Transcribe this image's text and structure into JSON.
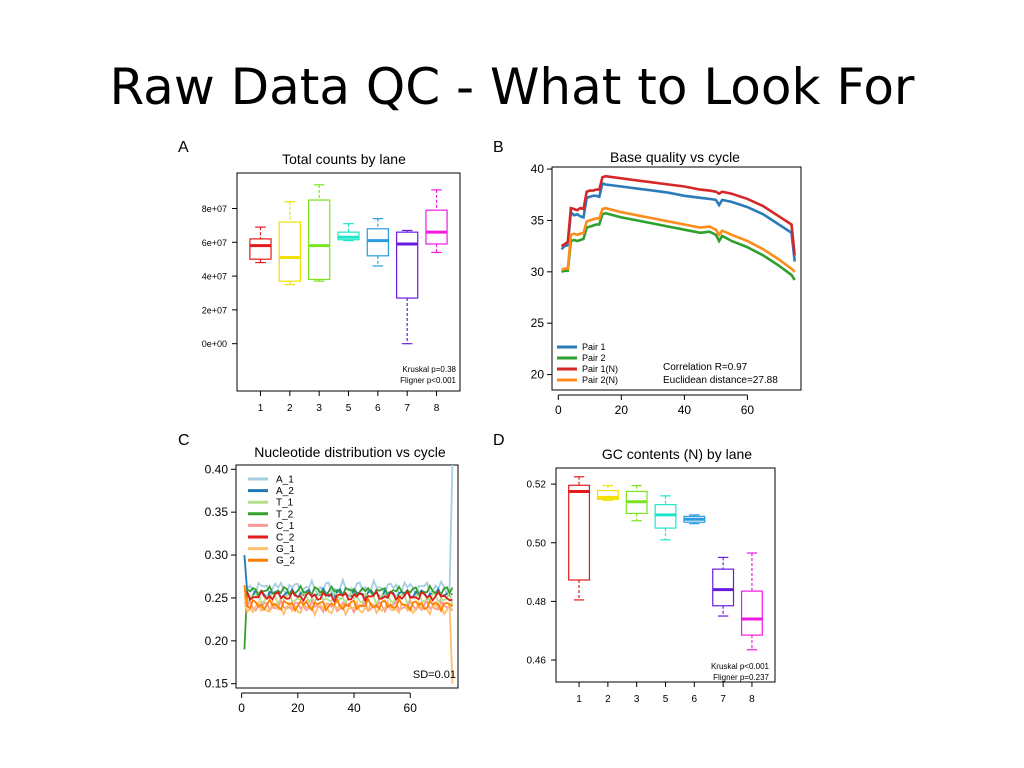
{
  "slide": {
    "title": "Raw Data QC - What to Look For"
  },
  "chart_data": [
    {
      "panel_letter": "A",
      "type": "box",
      "title": "Total counts by lane",
      "categories": [
        "1",
        "2",
        "3",
        "5",
        "6",
        "7",
        "8"
      ],
      "colors": [
        "#e41a1c",
        "#f2e100",
        "#78e51f",
        "#1ee6c8",
        "#2b9be0",
        "#6a1be0",
        "#f01ae0"
      ],
      "boxes": [
        {
          "min": 48000000,
          "q1": 50000000,
          "median": 58000000,
          "q3": 62000000,
          "max": 69000000
        },
        {
          "min": 35000000,
          "q1": 37000000,
          "median": 51000000,
          "q3": 72000000,
          "max": 84000000
        },
        {
          "min": 37000000,
          "q1": 38000000,
          "median": 58000000,
          "q3": 85000000,
          "max": 94000000
        },
        {
          "min": 61000000,
          "q1": 61500000,
          "median": 63000000,
          "q3": 66000000,
          "max": 71000000
        },
        {
          "min": 46000000,
          "q1": 52000000,
          "median": 61000000,
          "q3": 68000000,
          "max": 74000000
        },
        {
          "min": 0,
          "q1": 27000000,
          "median": 59000000,
          "q3": 66000000,
          "max": 67000000
        },
        {
          "min": 54000000,
          "q1": 59000000,
          "median": 66000000,
          "q3": 79000000,
          "max": 91000000
        }
      ],
      "ylim": [
        -28000000,
        101000000
      ],
      "yticks": [
        0,
        20000000,
        40000000,
        60000000,
        80000000
      ],
      "ytick_labels": [
        "0e+00",
        "2e+07",
        "4e+07",
        "6e+07",
        "8e+07"
      ],
      "annotations": [
        "Kruskal p=0.38",
        "Fligner p<0.001"
      ]
    },
    {
      "panel_letter": "B",
      "type": "line",
      "title": "Base quality vs cycle",
      "xlim": [
        -2,
        77
      ],
      "ylim": [
        18.5,
        40.2
      ],
      "xticks": [
        0,
        20,
        40,
        60
      ],
      "yticks": [
        20,
        25,
        30,
        35,
        40
      ],
      "series": [
        {
          "name": "Pair 1",
          "color": "#2b7bba",
          "x": [
            1,
            2,
            3,
            4,
            5,
            6,
            7,
            8,
            9,
            10,
            11,
            12,
            13,
            14,
            15,
            20,
            25,
            30,
            35,
            40,
            45,
            48,
            50,
            51,
            52,
            55,
            60,
            65,
            70,
            74,
            75
          ],
          "y": [
            32.2,
            32.5,
            32.6,
            35.8,
            35.5,
            35.6,
            35.4,
            35.3,
            37.2,
            37.3,
            37.4,
            37.4,
            37.3,
            38.6,
            38.5,
            38.3,
            38.1,
            37.9,
            37.7,
            37.4,
            37.2,
            37.1,
            37.0,
            36.5,
            37.0,
            36.8,
            36.3,
            35.6,
            34.6,
            33.8,
            31.0
          ]
        },
        {
          "name": "Pair 2",
          "color": "#2ea02c",
          "x": [
            1,
            2,
            3,
            4,
            5,
            6,
            7,
            8,
            9,
            10,
            11,
            12,
            13,
            14,
            15,
            20,
            25,
            30,
            35,
            40,
            45,
            48,
            50,
            51,
            52,
            55,
            60,
            65,
            70,
            74,
            75
          ],
          "y": [
            30.0,
            30.1,
            30.1,
            33.0,
            33.1,
            33.0,
            33.1,
            33.2,
            34.3,
            34.4,
            34.5,
            34.6,
            34.6,
            35.6,
            35.7,
            35.3,
            35.0,
            34.7,
            34.4,
            34.1,
            33.8,
            33.9,
            33.6,
            33.0,
            33.5,
            33.0,
            32.4,
            31.6,
            30.6,
            29.7,
            29.2
          ]
        },
        {
          "name": "Pair 1(N)",
          "color": "#d62728",
          "x": [
            1,
            2,
            3,
            4,
            5,
            6,
            7,
            8,
            9,
            10,
            11,
            12,
            13,
            14,
            15,
            20,
            25,
            30,
            35,
            40,
            45,
            48,
            50,
            51,
            52,
            55,
            60,
            65,
            70,
            74,
            75
          ],
          "y": [
            32.5,
            32.7,
            32.9,
            36.2,
            36.1,
            36.0,
            36.2,
            36.1,
            37.8,
            37.9,
            37.9,
            38.0,
            38.0,
            39.2,
            39.3,
            39.1,
            38.9,
            38.7,
            38.5,
            38.3,
            38.0,
            37.9,
            37.8,
            37.6,
            37.8,
            37.6,
            37.1,
            36.4,
            35.4,
            34.6,
            31.6
          ]
        },
        {
          "name": "Pair 2(N)",
          "color": "#ff8c1a",
          "x": [
            1,
            2,
            3,
            4,
            5,
            6,
            7,
            8,
            9,
            10,
            11,
            12,
            13,
            14,
            15,
            20,
            25,
            30,
            35,
            40,
            45,
            48,
            50,
            51,
            52,
            55,
            60,
            65,
            70,
            74,
            75
          ],
          "y": [
            30.2,
            30.3,
            30.3,
            33.6,
            33.7,
            33.6,
            33.7,
            33.8,
            34.9,
            35.0,
            35.1,
            35.2,
            35.2,
            36.1,
            36.2,
            35.8,
            35.5,
            35.2,
            34.9,
            34.6,
            34.3,
            34.4,
            34.1,
            33.6,
            34.0,
            33.6,
            33.0,
            32.2,
            31.2,
            30.3,
            30.0
          ]
        }
      ],
      "annotations": [
        "Correlation R=0.97",
        "Euclidean distance=27.88"
      ]
    },
    {
      "panel_letter": "C",
      "type": "line",
      "title": "Nucleotide distribution vs cycle",
      "xlim": [
        -2,
        77
      ],
      "ylim": [
        0.145,
        0.405
      ],
      "xticks": [
        0,
        20,
        40,
        60
      ],
      "yticks": [
        0.15,
        0.2,
        0.25,
        0.3,
        0.35,
        0.4
      ],
      "ytick_labels": [
        "0.15",
        "0.20",
        "0.25",
        "0.30",
        "0.35",
        "0.40"
      ],
      "series": [
        {
          "name": "A_1",
          "color": "#a6cee3",
          "base": 0.262,
          "amp": 0.009,
          "first": 0.262,
          "last": 0.405
        },
        {
          "name": "A_2",
          "color": "#1f78b4",
          "base": 0.255,
          "amp": 0.006,
          "first": 0.3,
          "last": 0.255
        },
        {
          "name": "T_1",
          "color": "#b2df8a",
          "base": 0.25,
          "amp": 0.008,
          "first": 0.24,
          "last": 0.24
        },
        {
          "name": "T_2",
          "color": "#33a02c",
          "base": 0.258,
          "amp": 0.006,
          "first": 0.19,
          "last": 0.262
        },
        {
          "name": "C_1",
          "color": "#fb9a99",
          "base": 0.24,
          "amp": 0.007,
          "first": 0.245,
          "last": 0.235
        },
        {
          "name": "C_2",
          "color": "#e31a1c",
          "base": 0.252,
          "amp": 0.006,
          "first": 0.258,
          "last": 0.248
        },
        {
          "name": "G_1",
          "color": "#fdbf6f",
          "base": 0.238,
          "amp": 0.008,
          "first": 0.255,
          "last": 0.15
        },
        {
          "name": "G_2",
          "color": "#ff7f00",
          "base": 0.242,
          "amp": 0.007,
          "first": 0.265,
          "last": 0.24
        }
      ],
      "cycles": 75,
      "annotations": [
        "SD=0.01"
      ]
    },
    {
      "panel_letter": "D",
      "type": "box",
      "title": "GC contents (N) by lane",
      "categories": [
        "1",
        "2",
        "3",
        "5",
        "6",
        "7",
        "8"
      ],
      "colors": [
        "#e41a1c",
        "#f2e100",
        "#78e51f",
        "#1ee6c8",
        "#2b9be0",
        "#6a1be0",
        "#f01ae0"
      ],
      "boxes": [
        {
          "min": 0.4805,
          "q1": 0.4873,
          "median": 0.5175,
          "q3": 0.5196,
          "max": 0.5225
        },
        {
          "min": 0.5145,
          "q1": 0.5148,
          "median": 0.5155,
          "q3": 0.5178,
          "max": 0.5195
        },
        {
          "min": 0.5075,
          "q1": 0.51,
          "median": 0.514,
          "q3": 0.5175,
          "max": 0.5195
        },
        {
          "min": 0.501,
          "q1": 0.505,
          "median": 0.5095,
          "q3": 0.513,
          "max": 0.516
        },
        {
          "min": 0.5065,
          "q1": 0.507,
          "median": 0.508,
          "q3": 0.509,
          "max": 0.5095
        },
        {
          "min": 0.475,
          "q1": 0.4785,
          "median": 0.484,
          "q3": 0.491,
          "max": 0.495
        },
        {
          "min": 0.4635,
          "q1": 0.4685,
          "median": 0.474,
          "q3": 0.4835,
          "max": 0.4965
        }
      ],
      "ylim": [
        0.4525,
        0.5255
      ],
      "yticks": [
        0.46,
        0.48,
        0.5,
        0.52
      ],
      "ytick_labels": [
        "0.46",
        "0.48",
        "0.50",
        "0.52"
      ],
      "annotations": [
        "Kruskal p<0.001",
        "Fligner p=0.237"
      ]
    }
  ]
}
